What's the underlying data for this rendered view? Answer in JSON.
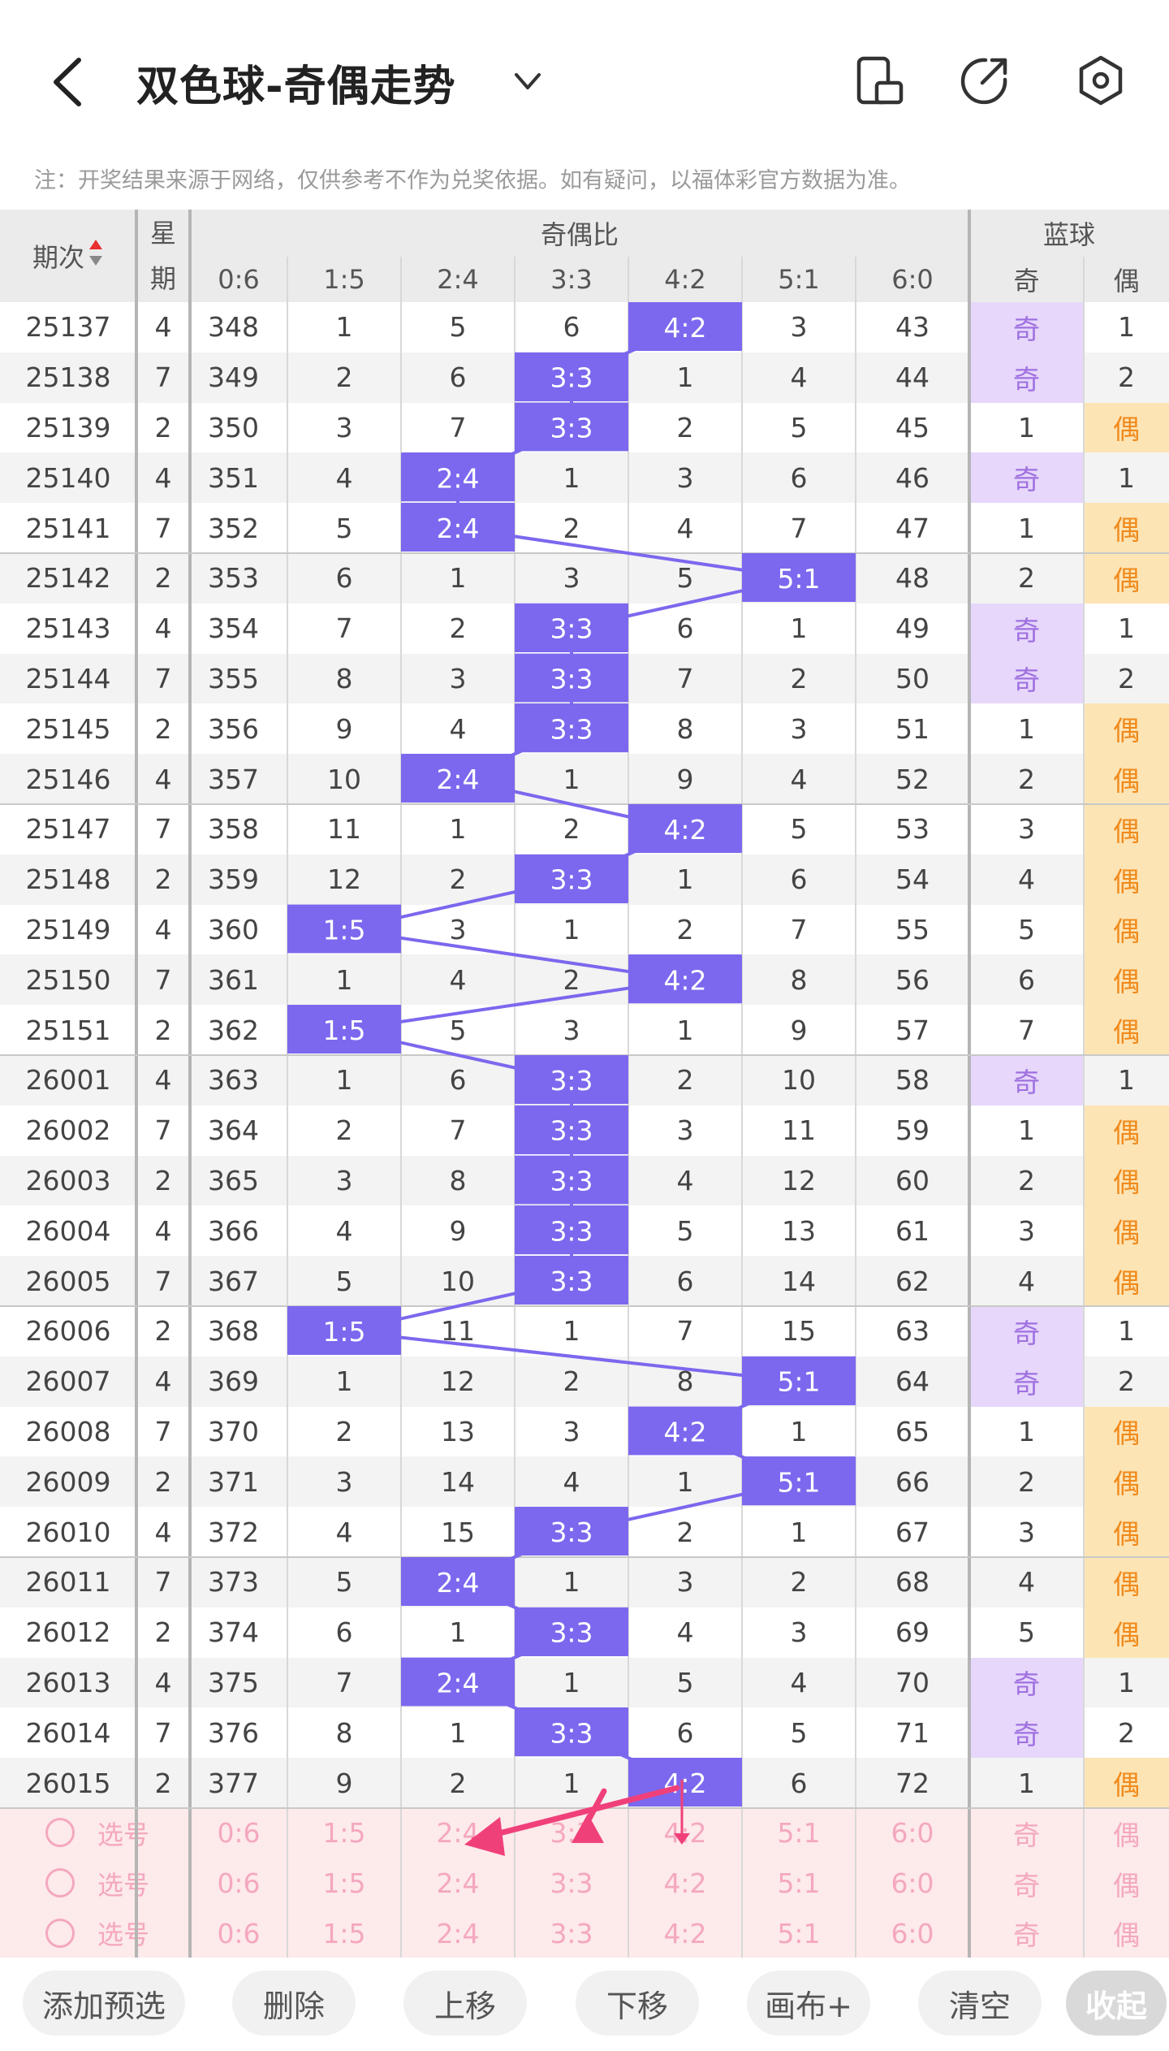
{
  "header": {
    "title": "双色球-奇偶走势",
    "icons": [
      "back-arrow-icon",
      "chevron-down-icon",
      "phone-rotate-icon",
      "share-icon",
      "settings-icon"
    ]
  },
  "notice": "注：开奖结果来源于网络，仅供参考不作为兑奖依据。如有疑问，以福体彩官方数据为准。",
  "table": {
    "col_issue": "期次",
    "col_week": "星期",
    "group_ratio": "奇偶比",
    "group_blue": "蓝球",
    "ratio_headers": [
      "0:6",
      "1:5",
      "2:4",
      "3:3",
      "4:2",
      "5:1",
      "6:0"
    ],
    "blue_headers": [
      "奇",
      "偶"
    ],
    "rows": [
      {
        "issue": "25137",
        "week": "4",
        "cells": [
          "348",
          "1",
          "5",
          "6",
          "4:2",
          "3",
          "43"
        ],
        "blue": [
          "奇",
          "1"
        ],
        "hl": 4,
        "bh": 0
      },
      {
        "issue": "25138",
        "week": "7",
        "cells": [
          "349",
          "2",
          "6",
          "3:3",
          "1",
          "4",
          "44"
        ],
        "blue": [
          "奇",
          "2"
        ],
        "hl": 3,
        "bh": 0
      },
      {
        "issue": "25139",
        "week": "2",
        "cells": [
          "350",
          "3",
          "7",
          "3:3",
          "2",
          "5",
          "45"
        ],
        "blue": [
          "1",
          "偶"
        ],
        "hl": 3,
        "bh": 1
      },
      {
        "issue": "25140",
        "week": "4",
        "cells": [
          "351",
          "4",
          "2:4",
          "1",
          "3",
          "6",
          "46"
        ],
        "blue": [
          "奇",
          "1"
        ],
        "hl": 2,
        "bh": 0
      },
      {
        "issue": "25141",
        "week": "7",
        "cells": [
          "352",
          "5",
          "2:4",
          "2",
          "4",
          "7",
          "47"
        ],
        "blue": [
          "1",
          "偶"
        ],
        "hl": 2,
        "bh": 1
      },
      {
        "issue": "25142",
        "week": "2",
        "cells": [
          "353",
          "6",
          "1",
          "3",
          "5",
          "5:1",
          "48"
        ],
        "blue": [
          "2",
          "偶"
        ],
        "hl": 5,
        "bh": 1
      },
      {
        "issue": "25143",
        "week": "4",
        "cells": [
          "354",
          "7",
          "2",
          "3:3",
          "6",
          "1",
          "49"
        ],
        "blue": [
          "奇",
          "1"
        ],
        "hl": 3,
        "bh": 0
      },
      {
        "issue": "25144",
        "week": "7",
        "cells": [
          "355",
          "8",
          "3",
          "3:3",
          "7",
          "2",
          "50"
        ],
        "blue": [
          "奇",
          "2"
        ],
        "hl": 3,
        "bh": 0
      },
      {
        "issue": "25145",
        "week": "2",
        "cells": [
          "356",
          "9",
          "4",
          "3:3",
          "8",
          "3",
          "51"
        ],
        "blue": [
          "1",
          "偶"
        ],
        "hl": 3,
        "bh": 1
      },
      {
        "issue": "25146",
        "week": "4",
        "cells": [
          "357",
          "10",
          "2:4",
          "1",
          "9",
          "4",
          "52"
        ],
        "blue": [
          "2",
          "偶"
        ],
        "hl": 2,
        "bh": 1
      },
      {
        "issue": "25147",
        "week": "7",
        "cells": [
          "358",
          "11",
          "1",
          "2",
          "4:2",
          "5",
          "53"
        ],
        "blue": [
          "3",
          "偶"
        ],
        "hl": 4,
        "bh": 1
      },
      {
        "issue": "25148",
        "week": "2",
        "cells": [
          "359",
          "12",
          "2",
          "3:3",
          "1",
          "6",
          "54"
        ],
        "blue": [
          "4",
          "偶"
        ],
        "hl": 3,
        "bh": 1
      },
      {
        "issue": "25149",
        "week": "4",
        "cells": [
          "360",
          "1:5",
          "3",
          "1",
          "2",
          "7",
          "55"
        ],
        "blue": [
          "5",
          "偶"
        ],
        "hl": 1,
        "bh": 1
      },
      {
        "issue": "25150",
        "week": "7",
        "cells": [
          "361",
          "1",
          "4",
          "2",
          "4:2",
          "8",
          "56"
        ],
        "blue": [
          "6",
          "偶"
        ],
        "hl": 4,
        "bh": 1
      },
      {
        "issue": "25151",
        "week": "2",
        "cells": [
          "362",
          "1:5",
          "5",
          "3",
          "1",
          "9",
          "57"
        ],
        "blue": [
          "7",
          "偶"
        ],
        "hl": 1,
        "bh": 1
      },
      {
        "issue": "26001",
        "week": "4",
        "cells": [
          "363",
          "1",
          "6",
          "3:3",
          "2",
          "10",
          "58"
        ],
        "blue": [
          "奇",
          "1"
        ],
        "hl": 3,
        "bh": 0
      },
      {
        "issue": "26002",
        "week": "7",
        "cells": [
          "364",
          "2",
          "7",
          "3:3",
          "3",
          "11",
          "59"
        ],
        "blue": [
          "1",
          "偶"
        ],
        "hl": 3,
        "bh": 1
      },
      {
        "issue": "26003",
        "week": "2",
        "cells": [
          "365",
          "3",
          "8",
          "3:3",
          "4",
          "12",
          "60"
        ],
        "blue": [
          "2",
          "偶"
        ],
        "hl": 3,
        "bh": 1
      },
      {
        "issue": "26004",
        "week": "4",
        "cells": [
          "366",
          "4",
          "9",
          "3:3",
          "5",
          "13",
          "61"
        ],
        "blue": [
          "3",
          "偶"
        ],
        "hl": 3,
        "bh": 1
      },
      {
        "issue": "26005",
        "week": "7",
        "cells": [
          "367",
          "5",
          "10",
          "3:3",
          "6",
          "14",
          "62"
        ],
        "blue": [
          "4",
          "偶"
        ],
        "hl": 3,
        "bh": 1
      },
      {
        "issue": "26006",
        "week": "2",
        "cells": [
          "368",
          "1:5",
          "11",
          "1",
          "7",
          "15",
          "63"
        ],
        "blue": [
          "奇",
          "1"
        ],
        "hl": 1,
        "bh": 0
      },
      {
        "issue": "26007",
        "week": "4",
        "cells": [
          "369",
          "1",
          "12",
          "2",
          "8",
          "5:1",
          "64"
        ],
        "blue": [
          "奇",
          "2"
        ],
        "hl": 5,
        "bh": 0
      },
      {
        "issue": "26008",
        "week": "7",
        "cells": [
          "370",
          "2",
          "13",
          "3",
          "4:2",
          "1",
          "65"
        ],
        "blue": [
          "1",
          "偶"
        ],
        "hl": 4,
        "bh": 1
      },
      {
        "issue": "26009",
        "week": "2",
        "cells": [
          "371",
          "3",
          "14",
          "4",
          "1",
          "5:1",
          "66"
        ],
        "blue": [
          "2",
          "偶"
        ],
        "hl": 5,
        "bh": 1
      },
      {
        "issue": "26010",
        "week": "4",
        "cells": [
          "372",
          "4",
          "15",
          "3:3",
          "2",
          "1",
          "67"
        ],
        "blue": [
          "3",
          "偶"
        ],
        "hl": 3,
        "bh": 1
      },
      {
        "issue": "26011",
        "week": "7",
        "cells": [
          "373",
          "5",
          "2:4",
          "1",
          "3",
          "2",
          "68"
        ],
        "blue": [
          "4",
          "偶"
        ],
        "hl": 2,
        "bh": 1
      },
      {
        "issue": "26012",
        "week": "2",
        "cells": [
          "374",
          "6",
          "1",
          "3:3",
          "4",
          "3",
          "69"
        ],
        "blue": [
          "5",
          "偶"
        ],
        "hl": 3,
        "bh": 1
      },
      {
        "issue": "26013",
        "week": "4",
        "cells": [
          "375",
          "7",
          "2:4",
          "1",
          "5",
          "4",
          "70"
        ],
        "blue": [
          "奇",
          "1"
        ],
        "hl": 2,
        "bh": 0
      },
      {
        "issue": "26014",
        "week": "7",
        "cells": [
          "376",
          "8",
          "1",
          "3:3",
          "6",
          "5",
          "71"
        ],
        "blue": [
          "奇",
          "2"
        ],
        "hl": 3,
        "bh": 0
      },
      {
        "issue": "26015",
        "week": "2",
        "cells": [
          "377",
          "9",
          "2",
          "1",
          "4:2",
          "6",
          "72"
        ],
        "blue": [
          "1",
          "偶"
        ],
        "hl": 4,
        "bh": 1
      }
    ],
    "pick_rows": [
      {
        "label": "选号",
        "cells": [
          "0:6",
          "1:5",
          "2:4",
          "3:3",
          "4:2",
          "5:1",
          "6:0"
        ],
        "blue": [
          "奇",
          "偶"
        ]
      },
      {
        "label": "选号",
        "cells": [
          "0:6",
          "1:5",
          "2:4",
          "3:3",
          "4:2",
          "5:1",
          "6:0"
        ],
        "blue": [
          "奇",
          "偶"
        ]
      },
      {
        "label": "选号",
        "cells": [
          "0:6",
          "1:5",
          "2:4",
          "3:3",
          "4:2",
          "5:1",
          "6:0"
        ],
        "blue": [
          "奇",
          "偶"
        ]
      }
    ]
  },
  "toolbar": {
    "add": "添加预选",
    "delete": "删除",
    "up": "上移",
    "down": "下移",
    "canvas": "画布+",
    "clear": "清空",
    "collapse": "收起"
  },
  "colors": {
    "highlight": "#7b68ee",
    "odd_bg": "#e6d7fb",
    "even_bg": "#fde4b4",
    "annotation": "#f0407a"
  }
}
